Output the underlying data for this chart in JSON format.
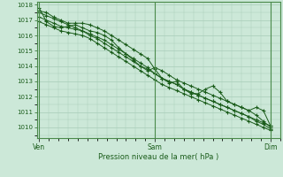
{
  "xlabel": "Pression niveau de la mer( hPa )",
  "xtick_labels": [
    "Ven",
    "Sam",
    "Dim"
  ],
  "xtick_positions": [
    0,
    48,
    96
  ],
  "ylim": [
    1009.3,
    1018.2
  ],
  "yticks": [
    1010,
    1011,
    1012,
    1013,
    1014,
    1015,
    1016,
    1017,
    1018
  ],
  "xlim": [
    -1,
    100
  ],
  "bg_color": "#cce8d8",
  "grid_color": "#a8ccb8",
  "line_color": "#1a5c1a",
  "marker": "+",
  "series": [
    [
      1017.5,
      1017.3,
      1017.1,
      1016.9,
      1016.7,
      1016.5,
      1016.3,
      1016.0,
      1015.8,
      1015.5,
      1015.2,
      1014.9,
      1014.6,
      1014.3,
      1014.0,
      1013.8,
      1013.5,
      1013.2,
      1013.0,
      1012.8,
      1012.5,
      1012.3,
      1012.1,
      1011.9,
      1011.7,
      1011.5,
      1011.3,
      1011.1,
      1010.9,
      1010.7,
      1010.5,
      1010.3,
      1010.1
    ],
    [
      1017.2,
      1017.0,
      1016.8,
      1016.6,
      1016.5,
      1016.4,
      1016.3,
      1016.1,
      1015.9,
      1015.7,
      1015.4,
      1015.1,
      1014.8,
      1014.5,
      1014.2,
      1013.9,
      1013.5,
      1013.2,
      1013.0,
      1012.8,
      1012.5,
      1012.3,
      1012.1,
      1011.9,
      1011.7,
      1011.5,
      1011.3,
      1011.1,
      1010.9,
      1010.7,
      1010.4,
      1010.2,
      1009.9
    ],
    [
      1016.9,
      1016.7,
      1016.5,
      1016.3,
      1016.2,
      1016.1,
      1016.0,
      1015.8,
      1015.5,
      1015.2,
      1014.9,
      1014.6,
      1014.3,
      1014.0,
      1013.7,
      1013.4,
      1013.1,
      1012.8,
      1012.6,
      1012.4,
      1012.2,
      1012.0,
      1011.8,
      1011.6,
      1011.4,
      1011.2,
      1011.0,
      1010.8,
      1010.6,
      1010.4,
      1010.2,
      1010.0,
      1009.8
    ],
    [
      1017.8,
      1016.9,
      1016.6,
      1016.5,
      1016.6,
      1016.7,
      1016.5,
      1016.3,
      1016.2,
      1016.0,
      1015.7,
      1015.2,
      1014.8,
      1014.4,
      1014.0,
      1013.7,
      1013.9,
      1013.7,
      1013.4,
      1013.1,
      1012.9,
      1012.7,
      1012.5,
      1012.3,
      1012.1,
      1011.9,
      1011.7,
      1011.5,
      1011.3,
      1011.1,
      1010.8,
      1010.4,
      1010.0
    ],
    [
      1017.6,
      1017.5,
      1017.2,
      1017.0,
      1016.8,
      1016.8,
      1016.8,
      1016.7,
      1016.5,
      1016.3,
      1016.0,
      1015.7,
      1015.4,
      1015.1,
      1014.8,
      1014.5,
      1013.8,
      1013.2,
      1012.9,
      1013.0,
      1012.5,
      1012.2,
      1012.2,
      1012.5,
      1012.7,
      1012.3,
      1011.7,
      1011.5,
      1011.3,
      1011.1,
      1011.3,
      1011.1,
      1010.1
    ]
  ]
}
